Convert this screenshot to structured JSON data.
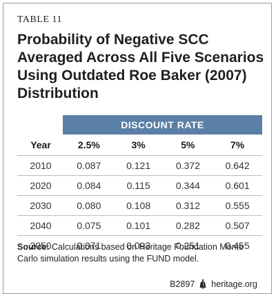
{
  "table_label": "TABLE 11",
  "title_lines": [
    "Probability of Negative SCC",
    "Averaged Across All Five Scenarios",
    "Using Outdated Roe Baker (2007)",
    "Distribution"
  ],
  "discount_header": "DISCOUNT RATE",
  "columns": [
    "Year",
    "2.5%",
    "3%",
    "5%",
    "7%"
  ],
  "rows": [
    [
      "2010",
      "0.087",
      "0.121",
      "0.372",
      "0.642"
    ],
    [
      "2020",
      "0.084",
      "0.115",
      "0.344",
      "0.601"
    ],
    [
      "2030",
      "0.080",
      "0.108",
      "0.312",
      "0.555"
    ],
    [
      "2040",
      "0.075",
      "0.101",
      "0.282",
      "0.507"
    ],
    [
      "2050",
      "0.071",
      "0.093",
      "0.251",
      "0.455"
    ]
  ],
  "source_label": "Source:",
  "source_text": "Calculations based on Heritage Foundation Monte Carlo simulation results using the FUND model.",
  "footer_code": "B2897",
  "footer_site": "heritage.org"
}
